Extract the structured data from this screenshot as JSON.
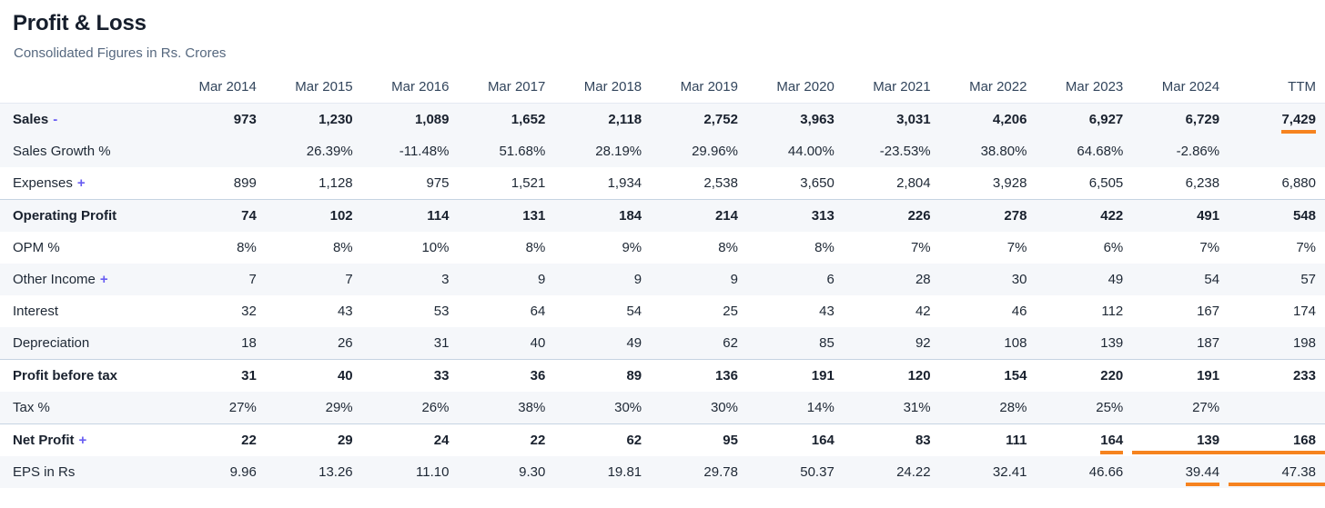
{
  "colors": {
    "accent_underline": "#f6831f",
    "toggle_link": "#685df2",
    "row_stripe": "#f5f7fa",
    "section_divider": "#c6d4e2"
  },
  "header": {
    "title": "Profit & Loss",
    "subtitle": "Consolidated Figures in Rs. Crores"
  },
  "table": {
    "columns": [
      "Mar 2014",
      "Mar 2015",
      "Mar 2016",
      "Mar 2017",
      "Mar 2018",
      "Mar 2019",
      "Mar 2020",
      "Mar 2021",
      "Mar 2022",
      "Mar 2023",
      "Mar 2024",
      "TTM"
    ],
    "rows": [
      {
        "label": "Sales",
        "toggle": "-",
        "bold": true,
        "striped": true,
        "values": [
          "973",
          "1,230",
          "1,089",
          "1,652",
          "2,118",
          "2,752",
          "3,963",
          "3,031",
          "4,206",
          "6,927",
          "6,729",
          "7,429"
        ],
        "underlines": [
          {
            "col": 11,
            "type": "text"
          }
        ]
      },
      {
        "label": "Sales Growth %",
        "striped": true,
        "values": [
          "",
          "26.39%",
          "-11.48%",
          "51.68%",
          "28.19%",
          "29.96%",
          "44.00%",
          "-23.53%",
          "38.80%",
          "64.68%",
          "-2.86%",
          ""
        ]
      },
      {
        "label": "Expenses",
        "toggle": "+",
        "values": [
          "899",
          "1,128",
          "975",
          "1,521",
          "1,934",
          "2,538",
          "3,650",
          "2,804",
          "3,928",
          "6,505",
          "6,238",
          "6,880"
        ]
      },
      {
        "label": "Operating Profit",
        "bold": true,
        "striped": true,
        "border_top": true,
        "values": [
          "74",
          "102",
          "114",
          "131",
          "184",
          "214",
          "313",
          "226",
          "278",
          "422",
          "491",
          "548"
        ]
      },
      {
        "label": "OPM %",
        "values": [
          "8%",
          "8%",
          "10%",
          "8%",
          "9%",
          "8%",
          "8%",
          "7%",
          "7%",
          "6%",
          "7%",
          "7%"
        ]
      },
      {
        "label": "Other Income",
        "toggle": "+",
        "striped": true,
        "values": [
          "7",
          "7",
          "3",
          "9",
          "9",
          "9",
          "6",
          "28",
          "30",
          "49",
          "54",
          "57"
        ]
      },
      {
        "label": "Interest",
        "values": [
          "32",
          "43",
          "53",
          "64",
          "54",
          "25",
          "43",
          "42",
          "46",
          "112",
          "167",
          "174"
        ]
      },
      {
        "label": "Depreciation",
        "striped": true,
        "values": [
          "18",
          "26",
          "31",
          "40",
          "49",
          "62",
          "85",
          "92",
          "108",
          "139",
          "187",
          "198"
        ]
      },
      {
        "label": "Profit before tax",
        "bold": true,
        "border_top": true,
        "values": [
          "31",
          "40",
          "33",
          "36",
          "89",
          "136",
          "191",
          "120",
          "154",
          "220",
          "191",
          "233"
        ]
      },
      {
        "label": "Tax %",
        "striped": true,
        "values": [
          "27%",
          "29%",
          "26%",
          "38%",
          "30%",
          "30%",
          "14%",
          "31%",
          "28%",
          "25%",
          "27%",
          ""
        ]
      },
      {
        "label": "Net Profit",
        "toggle": "+",
        "bold": true,
        "border_top": true,
        "values": [
          "22",
          "29",
          "24",
          "22",
          "62",
          "95",
          "164",
          "83",
          "111",
          "164",
          "139",
          "168"
        ],
        "underlines": [
          {
            "col": 9,
            "type": "text"
          },
          {
            "col": 10,
            "type": "cell"
          },
          {
            "col": 11,
            "type": "cell"
          }
        ]
      },
      {
        "label": "EPS in Rs",
        "striped": true,
        "values": [
          "9.96",
          "13.26",
          "11.10",
          "9.30",
          "19.81",
          "29.78",
          "50.37",
          "24.22",
          "32.41",
          "46.66",
          "39.44",
          "47.38"
        ],
        "underlines": [
          {
            "col": 10,
            "type": "text"
          },
          {
            "col": 11,
            "type": "cell"
          }
        ]
      }
    ]
  }
}
